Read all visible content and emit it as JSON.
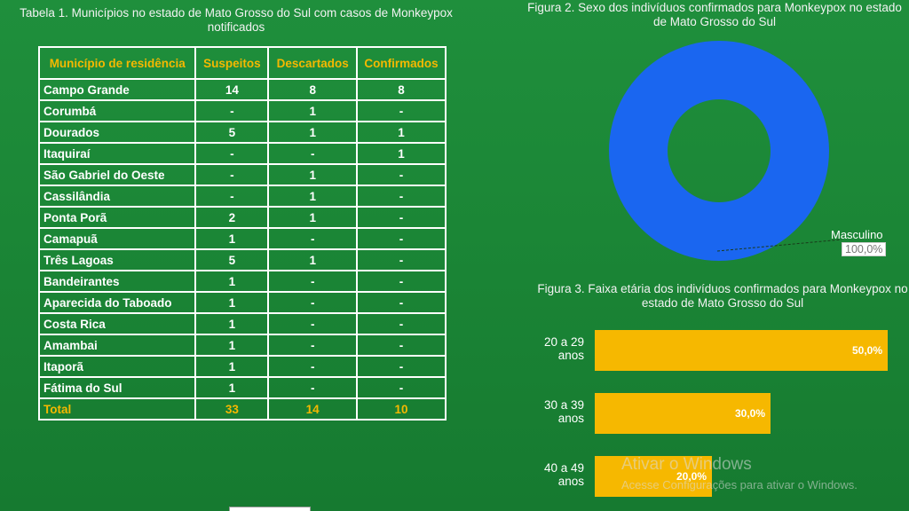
{
  "table1": {
    "title": "Tabela 1. Municípios no estado de Mato Grosso do Sul com casos de Monkeypox notificados",
    "headers": [
      "Município de residência",
      "Suspeitos",
      "Descartados",
      "Confirmados"
    ],
    "rows": [
      [
        "Campo Grande",
        "14",
        "8",
        "8"
      ],
      [
        "Corumbá",
        "-",
        "1",
        "-"
      ],
      [
        "Dourados",
        "5",
        "1",
        "1"
      ],
      [
        "Itaquiraí",
        "-",
        "-",
        "1"
      ],
      [
        "São Gabriel do Oeste",
        "-",
        "1",
        "-"
      ],
      [
        "Cassilândia",
        "-",
        "1",
        "-"
      ],
      [
        "Ponta Porã",
        "2",
        "1",
        "-"
      ],
      [
        "Camapuã",
        "1",
        "-",
        "-"
      ],
      [
        "Três Lagoas",
        "5",
        "1",
        "-"
      ],
      [
        "Bandeirantes",
        "1",
        "-",
        "-"
      ],
      [
        "Aparecida do Taboado",
        "1",
        "-",
        "-"
      ],
      [
        "Costa Rica",
        "1",
        "-",
        "-"
      ],
      [
        "Amambai",
        "1",
        "-",
        "-"
      ],
      [
        "Itaporã",
        "1",
        "-",
        "-"
      ],
      [
        "Fátima do Sul",
        "1",
        "-",
        "-"
      ]
    ],
    "total": [
      "Total",
      "33",
      "14",
      "10"
    ]
  },
  "chart_data": [
    {
      "type": "pie",
      "title": "Figura 2. Sexo dos indivíduos confirmados para Monkeypox no estado de Mato Grosso do Sul",
      "categories": [
        "Masculino"
      ],
      "values": [
        100
      ],
      "data_labels": [
        "100,0%"
      ],
      "colors": [
        "#1a66f0"
      ],
      "donut": true
    },
    {
      "type": "bar",
      "orientation": "horizontal",
      "title": "Figura 3. Faixa etária dos indivíduos confirmados para Monkeypox no estado de Mato Grosso do Sul",
      "categories": [
        "20 a 29 anos",
        "30 a 39 anos",
        "40 a 49 anos"
      ],
      "values": [
        50,
        30,
        20
      ],
      "data_labels": [
        "50,0%",
        "30,0%",
        "20,0%"
      ],
      "xlim": [
        0,
        50
      ],
      "colors": [
        "#f6b800"
      ]
    }
  ],
  "watermark": {
    "line1": "Ativar o Windows",
    "line2": "Acesse Configurações para ativar o Windows."
  }
}
